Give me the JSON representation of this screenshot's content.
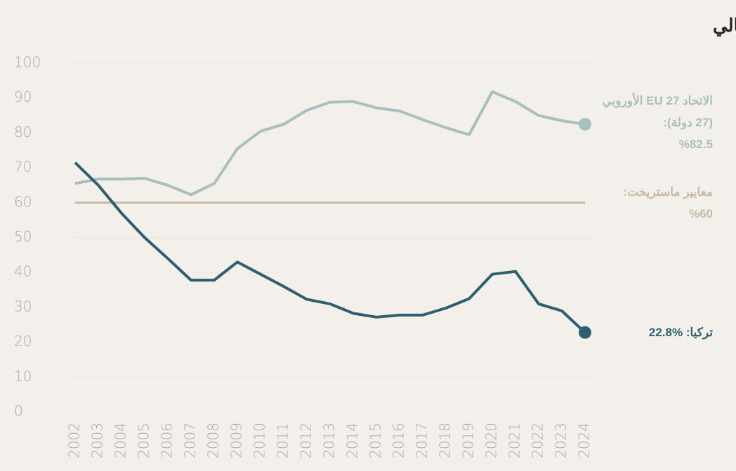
{
  "chart_data": {
    "type": "line",
    "title": "إجمالي الدين العام كنسبة من الناتج المحلي الإجمالي",
    "categories": [
      "2002",
      "2003",
      "2004",
      "2005",
      "2006",
      "2007",
      "2008",
      "2009",
      "2010",
      "2011",
      "2012",
      "2013",
      "2014",
      "2015",
      "2016",
      "2017",
      "2018",
      "2019",
      "2020",
      "2021",
      "2022",
      "2023",
      "2024"
    ],
    "series": [
      {
        "name": "الاتحاد EU 27 الأوروبي (27 دولة):",
        "color": "#a9bfbb",
        "values": [
          65.5,
          66.8,
          66.8,
          67,
          65,
          62.3,
          65.5,
          75.5,
          80.5,
          82.5,
          86.5,
          88.8,
          89,
          87.2,
          86.3,
          83.8,
          81.5,
          79.5,
          91.8,
          89,
          85,
          83.5,
          82.5
        ],
        "value_labels": [
          null,
          null,
          null,
          null,
          null,
          null,
          null,
          null,
          null,
          null,
          null,
          null,
          null,
          null,
          null,
          null,
          null,
          null,
          null,
          null,
          null,
          null,
          "%82.5"
        ]
      },
      {
        "name": "تركيا:",
        "color": "#2e5f6e",
        "values": [
          71.5,
          65,
          57,
          50,
          44,
          37.8,
          37.8,
          43,
          39.5,
          36,
          32.3,
          31,
          28.3,
          27.2,
          27.8,
          27.8,
          29.8,
          32.5,
          39.5,
          40.3,
          31,
          29,
          22.8
        ],
        "value_labels": [
          null,
          null,
          null,
          null,
          null,
          null,
          null,
          null,
          null,
          null,
          null,
          null,
          null,
          null,
          null,
          null,
          null,
          null,
          null,
          null,
          null,
          null,
          "%22.8"
        ]
      }
    ],
    "reference_line": {
      "name": "معايير ماستريخت:",
      "value": 60,
      "label": "%60",
      "color": "#c8baa5"
    },
    "ylim": [
      0,
      100
    ],
    "yticks": [
      0,
      10,
      20,
      30,
      40,
      50,
      60,
      70,
      80,
      90,
      100
    ],
    "grid": true
  }
}
